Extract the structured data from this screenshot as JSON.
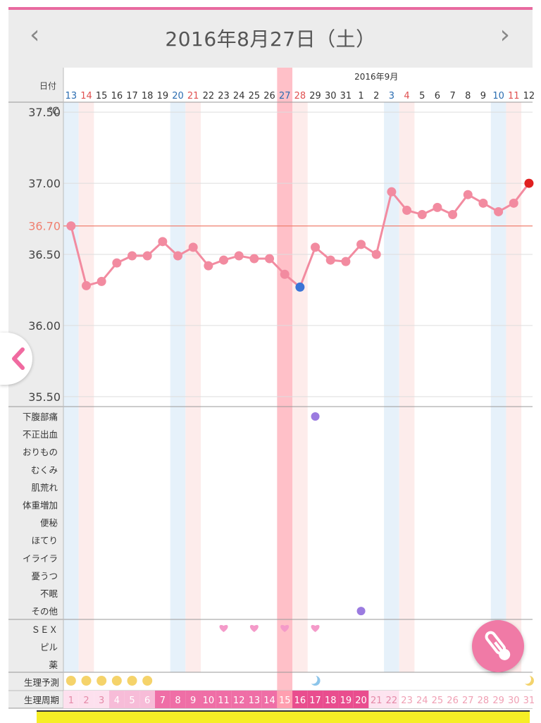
{
  "header": {
    "title": "2016年8月27日（土）",
    "prev_icon": "‹",
    "next_icon": "›"
  },
  "colors": {
    "accent_pink": "#e86aa0",
    "line": "#f28ba0",
    "point": "#f28ba0",
    "selected_point": "#3b74d6",
    "latest_point": "#e02020",
    "threshold": "#f08070",
    "saturday": "#2a6cb0",
    "sunday": "#e05050",
    "symptom_dot": "#9b7be0",
    "heart": "#f49ac9",
    "prediction_dot": "#f5d36a"
  },
  "row_labels": {
    "date": "日付",
    "prediction": "生理予測",
    "cycle": "生理周期"
  },
  "month_label": "2016年9月",
  "dates": [
    13,
    14,
    15,
    16,
    17,
    18,
    19,
    20,
    21,
    22,
    23,
    24,
    25,
    26,
    27,
    28,
    29,
    30,
    31,
    1,
    2,
    3,
    4,
    5,
    6,
    7,
    8,
    9,
    10,
    11,
    12
  ],
  "saturday_index": [
    0,
    7,
    14,
    21,
    28
  ],
  "sunday_index": [
    1,
    8,
    15,
    22,
    29
  ],
  "selected_index": 14,
  "chart_data": {
    "type": "line",
    "ylabel": "℃",
    "y_ticks": [
      "37.50",
      "37.00",
      "36.70",
      "36.50",
      "36.00",
      "35.50"
    ],
    "ylim": [
      35.43,
      37.57
    ],
    "threshold": 36.7,
    "x": [
      "8/13",
      "8/14",
      "8/15",
      "8/16",
      "8/17",
      "8/18",
      "8/19",
      "8/20",
      "8/21",
      "8/22",
      "8/23",
      "8/24",
      "8/25",
      "8/26",
      "8/27",
      "8/28",
      "8/29",
      "8/30",
      "8/31",
      "9/1",
      "9/2",
      "9/3",
      "9/4",
      "9/5",
      "9/6",
      "9/7",
      "9/8",
      "9/9",
      "9/10",
      "9/11",
      "9/12"
    ],
    "series": [
      {
        "values": [
          36.7,
          36.28,
          36.31,
          36.44,
          36.49,
          36.49,
          36.59,
          36.49,
          36.55,
          36.42,
          36.46,
          36.49,
          36.47,
          36.47,
          36.36,
          36.27,
          36.55,
          36.46,
          36.45,
          36.57,
          36.5,
          36.94,
          36.81,
          36.78,
          36.83,
          36.78,
          36.92,
          36.86,
          36.8,
          36.86,
          37.0
        ]
      }
    ]
  },
  "symptoms": {
    "labels": [
      "下腹部痛",
      "不正出血",
      "おりもの",
      "むくみ",
      "肌荒れ",
      "体重増加",
      "便秘",
      "ほてり",
      "イライラ",
      "憂うつ",
      "不眠",
      "その他"
    ],
    "marks": [
      {
        "row": 0,
        "day": 17
      },
      {
        "row": 11,
        "day": 20
      }
    ]
  },
  "sex": {
    "labels": [
      "ＳＥＸ",
      "ピル",
      "薬"
    ],
    "marks": [
      {
        "row": 0,
        "day": 11
      },
      {
        "row": 0,
        "day": 13
      },
      {
        "row": 0,
        "day": 15
      },
      {
        "row": 0,
        "day": 17
      }
    ]
  },
  "prediction_dots": [
    0,
    1,
    2,
    3,
    4,
    5
  ],
  "prediction_moons": [
    16,
    30
  ],
  "cycle_days": [
    1,
    2,
    3,
    4,
    5,
    6,
    7,
    8,
    9,
    10,
    11,
    12,
    13,
    14,
    15,
    16,
    17,
    18,
    19,
    20,
    21,
    22,
    23,
    24,
    25,
    26,
    27,
    28,
    29,
    30,
    31
  ],
  "side_icon": "chevron-left",
  "fab_icon": "thermometer"
}
